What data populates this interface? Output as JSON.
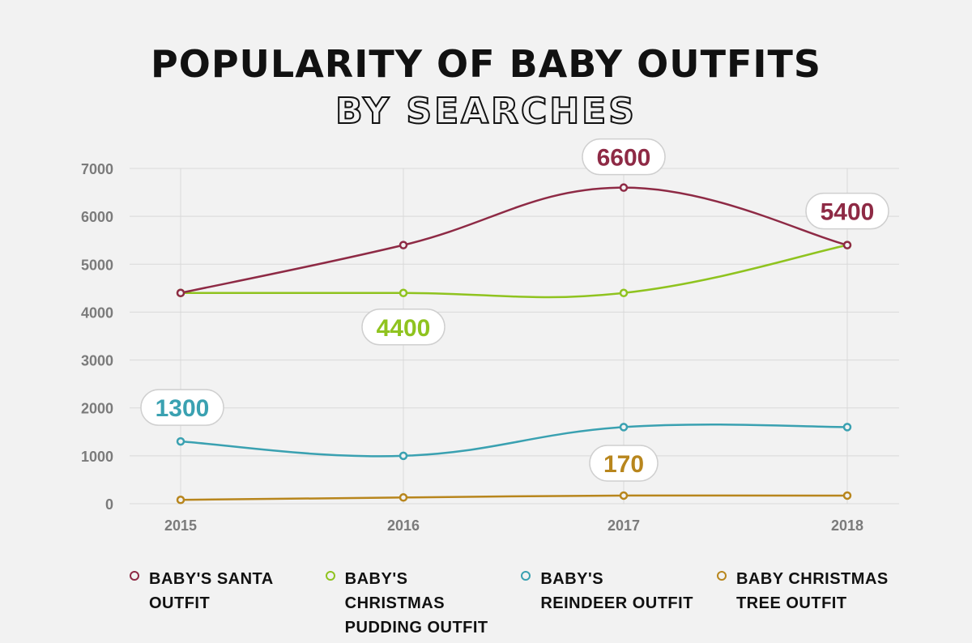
{
  "chart_data": {
    "type": "line",
    "title": "POPULARITY OF BABY OUTFITS",
    "subtitle": "BY SEARCHES",
    "x": [
      "2015",
      "2016",
      "2017",
      "2018"
    ],
    "ylim": [
      0,
      7000
    ],
    "yticks": [
      "0",
      "1000",
      "2000",
      "3000",
      "4000",
      "5000",
      "6000",
      "7000"
    ],
    "grid": true,
    "legend_position": "bottom",
    "series": [
      {
        "name": "BABY'S SANTA OUTFIT",
        "color": "#8e2a45",
        "values": [
          4400,
          5400,
          6600,
          5400
        ]
      },
      {
        "name": "BABY'S CHRISTMAS PUDDING OUTFIT",
        "color": "#8fc31f",
        "values": [
          4400,
          4400,
          4400,
          5400
        ]
      },
      {
        "name": "BABY'S REINDEER OUTFIT",
        "color": "#3aa1b1",
        "values": [
          1300,
          1000,
          1600,
          1600
        ]
      },
      {
        "name": "BABY CHRISTMAS TREE OUTFIT",
        "color": "#b8861d",
        "values": [
          80,
          130,
          170,
          170
        ]
      }
    ],
    "data_labels": [
      {
        "series": 0,
        "point": 2,
        "text": "6600"
      },
      {
        "series": 0,
        "point": 3,
        "text": "5400"
      },
      {
        "series": 1,
        "point": 1,
        "text": "4400"
      },
      {
        "series": 2,
        "point": 0,
        "text": "1300"
      },
      {
        "series": 3,
        "point": 2,
        "text": "170"
      }
    ]
  }
}
